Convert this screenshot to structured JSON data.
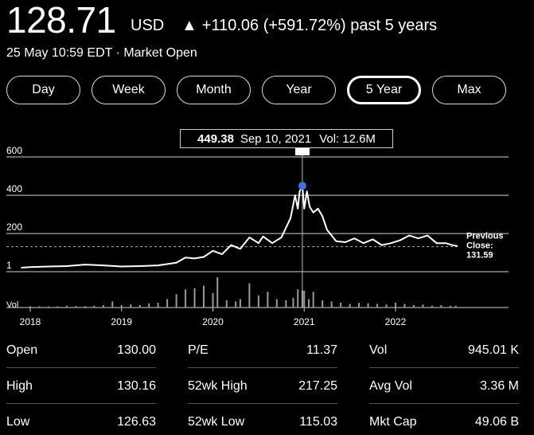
{
  "header": {
    "price": "128.71",
    "currency": "USD",
    "arrow": "▲",
    "change": "+110.06 (+591.72%) past 5 years",
    "subline": "25 May 10:59 EDT · Market Open"
  },
  "ranges": [
    {
      "label": "Day",
      "active": false
    },
    {
      "label": "Week",
      "active": false
    },
    {
      "label": "Month",
      "active": false
    },
    {
      "label": "Year",
      "active": false
    },
    {
      "label": "5 Year",
      "active": true
    },
    {
      "label": "Max",
      "active": false
    }
  ],
  "tooltip": {
    "price": "449.38",
    "date": "Sep 10, 2021",
    "vol_label": "Vol:",
    "vol": "12.6M"
  },
  "chart_data": {
    "type": "line",
    "y_ticks": [
      "600",
      "400",
      "200",
      "1"
    ],
    "x_ticks": [
      "2018",
      "2019",
      "2020",
      "2021",
      "2022"
    ],
    "volume_label": "Vol",
    "previous_close_label": "Previous Close:",
    "previous_close_value": "131.59",
    "previous_close": 131.59,
    "ylim": [
      1,
      600
    ],
    "price_series": [
      {
        "x": 2017.9,
        "y": 22
      },
      {
        "x": 2018.0,
        "y": 25
      },
      {
        "x": 2018.2,
        "y": 28
      },
      {
        "x": 2018.4,
        "y": 30
      },
      {
        "x": 2018.6,
        "y": 38
      },
      {
        "x": 2018.8,
        "y": 34
      },
      {
        "x": 2019.0,
        "y": 28
      },
      {
        "x": 2019.2,
        "y": 30
      },
      {
        "x": 2019.4,
        "y": 34
      },
      {
        "x": 2019.6,
        "y": 48
      },
      {
        "x": 2019.7,
        "y": 75
      },
      {
        "x": 2019.8,
        "y": 70
      },
      {
        "x": 2019.9,
        "y": 78
      },
      {
        "x": 2020.0,
        "y": 110
      },
      {
        "x": 2020.1,
        "y": 92
      },
      {
        "x": 2020.2,
        "y": 140
      },
      {
        "x": 2020.3,
        "y": 120
      },
      {
        "x": 2020.4,
        "y": 180
      },
      {
        "x": 2020.5,
        "y": 150
      },
      {
        "x": 2020.55,
        "y": 185
      },
      {
        "x": 2020.65,
        "y": 150
      },
      {
        "x": 2020.75,
        "y": 180
      },
      {
        "x": 2020.8,
        "y": 230
      },
      {
        "x": 2020.85,
        "y": 280
      },
      {
        "x": 2020.9,
        "y": 400
      },
      {
        "x": 2020.93,
        "y": 330
      },
      {
        "x": 2020.95,
        "y": 420
      },
      {
        "x": 2020.98,
        "y": 449.38
      },
      {
        "x": 2021.0,
        "y": 330
      },
      {
        "x": 2021.03,
        "y": 420
      },
      {
        "x": 2021.06,
        "y": 340
      },
      {
        "x": 2021.1,
        "y": 310
      },
      {
        "x": 2021.15,
        "y": 330
      },
      {
        "x": 2021.2,
        "y": 290
      },
      {
        "x": 2021.25,
        "y": 220
      },
      {
        "x": 2021.35,
        "y": 160
      },
      {
        "x": 2021.45,
        "y": 155
      },
      {
        "x": 2021.55,
        "y": 175
      },
      {
        "x": 2021.65,
        "y": 150
      },
      {
        "x": 2021.75,
        "y": 170
      },
      {
        "x": 2021.85,
        "y": 140
      },
      {
        "x": 2021.95,
        "y": 150
      },
      {
        "x": 2022.05,
        "y": 165
      },
      {
        "x": 2022.15,
        "y": 190
      },
      {
        "x": 2022.25,
        "y": 175
      },
      {
        "x": 2022.35,
        "y": 190
      },
      {
        "x": 2022.45,
        "y": 150
      },
      {
        "x": 2022.55,
        "y": 150
      },
      {
        "x": 2022.62,
        "y": 140
      },
      {
        "x": 2022.68,
        "y": 135
      }
    ],
    "highlight": {
      "x": 2020.98,
      "y": 449.38
    },
    "volume_bars": [
      {
        "x": 2018.0,
        "v": 0.1
      },
      {
        "x": 2018.1,
        "v": 0.1
      },
      {
        "x": 2018.2,
        "v": 0.1
      },
      {
        "x": 2018.3,
        "v": 0.1
      },
      {
        "x": 2018.4,
        "v": 0.15
      },
      {
        "x": 2018.5,
        "v": 0.12
      },
      {
        "x": 2018.6,
        "v": 0.12
      },
      {
        "x": 2018.7,
        "v": 0.15
      },
      {
        "x": 2018.8,
        "v": 0.2
      },
      {
        "x": 2018.9,
        "v": 0.5
      },
      {
        "x": 2019.0,
        "v": 0.2
      },
      {
        "x": 2019.1,
        "v": 0.25
      },
      {
        "x": 2019.2,
        "v": 0.2
      },
      {
        "x": 2019.3,
        "v": 0.35
      },
      {
        "x": 2019.4,
        "v": 0.4
      },
      {
        "x": 2019.5,
        "v": 0.7
      },
      {
        "x": 2019.6,
        "v": 1.1
      },
      {
        "x": 2019.7,
        "v": 1.5
      },
      {
        "x": 2019.8,
        "v": 1.6
      },
      {
        "x": 2019.9,
        "v": 1.8
      },
      {
        "x": 2020.0,
        "v": 1.2
      },
      {
        "x": 2020.05,
        "v": 2.5
      },
      {
        "x": 2020.15,
        "v": 0.6
      },
      {
        "x": 2020.25,
        "v": 0.5
      },
      {
        "x": 2020.3,
        "v": 0.7
      },
      {
        "x": 2020.4,
        "v": 2.0
      },
      {
        "x": 2020.5,
        "v": 1.0
      },
      {
        "x": 2020.6,
        "v": 1.3
      },
      {
        "x": 2020.7,
        "v": 0.7
      },
      {
        "x": 2020.8,
        "v": 0.6
      },
      {
        "x": 2020.88,
        "v": 0.8
      },
      {
        "x": 2020.93,
        "v": 1.5
      },
      {
        "x": 2020.98,
        "v": 1.4
      },
      {
        "x": 2021.0,
        "v": 1.4
      },
      {
        "x": 2021.05,
        "v": 0.7
      },
      {
        "x": 2021.1,
        "v": 1.3
      },
      {
        "x": 2021.2,
        "v": 0.6
      },
      {
        "x": 2021.3,
        "v": 0.5
      },
      {
        "x": 2021.4,
        "v": 0.4
      },
      {
        "x": 2021.5,
        "v": 0.3
      },
      {
        "x": 2021.6,
        "v": 0.4
      },
      {
        "x": 2021.7,
        "v": 0.35
      },
      {
        "x": 2021.8,
        "v": 0.3
      },
      {
        "x": 2021.9,
        "v": 0.25
      },
      {
        "x": 2022.0,
        "v": 0.4
      },
      {
        "x": 2022.1,
        "v": 0.3
      },
      {
        "x": 2022.2,
        "v": 0.2
      },
      {
        "x": 2022.3,
        "v": 0.25
      },
      {
        "x": 2022.4,
        "v": 0.15
      },
      {
        "x": 2022.5,
        "v": 0.2
      },
      {
        "x": 2022.6,
        "v": 0.15
      },
      {
        "x": 2022.66,
        "v": 0.15
      }
    ]
  },
  "stats": [
    {
      "label": "Open",
      "value": "130.00"
    },
    {
      "label": "P/E",
      "value": "11.37"
    },
    {
      "label": "Vol",
      "value": "945.01 K"
    },
    {
      "label": "High",
      "value": "130.16"
    },
    {
      "label": "52wk High",
      "value": "217.25"
    },
    {
      "label": "Avg Vol",
      "value": "3.36 M"
    },
    {
      "label": "Low",
      "value": "126.63"
    },
    {
      "label": "52wk Low",
      "value": "115.03"
    },
    {
      "label": "Mkt Cap",
      "value": "49.06 B"
    }
  ]
}
